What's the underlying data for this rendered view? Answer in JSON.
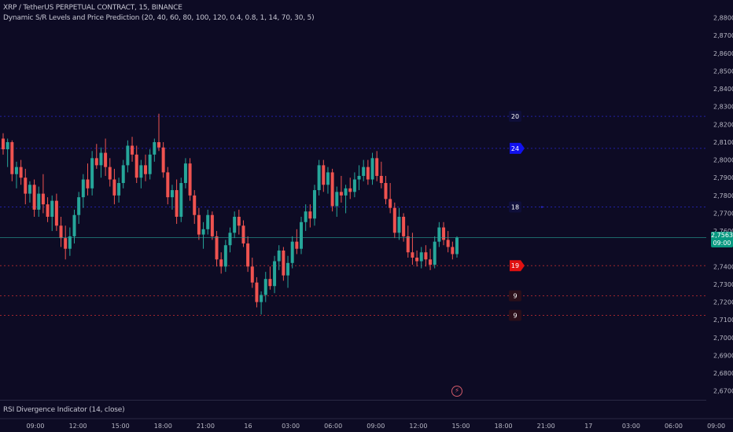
{
  "header": {
    "symbol_line": "XRP / TetherUS PERPETUAL CONTRACT, 15, BINANCE",
    "indicator_line": "Dynamic S/R Levels and Price Prediction (20, 40, 60, 80, 100, 120, 0.4, 0.8, 1, 14, 70, 30, 5)"
  },
  "indicator_pane": {
    "label": "RSI Divergence Indicator (14, close)"
  },
  "price_badge": {
    "price": "2,7563",
    "countdown": "09:00"
  },
  "colors": {
    "background": "#0d0b24",
    "up": "#26a69a",
    "down": "#ef5350",
    "resistance": "#2828d0",
    "support": "#d03030",
    "badge": "#089981"
  },
  "icons": {
    "alert": "lightning-alert-icon"
  },
  "chart_data": {
    "type": "candlestick",
    "y_axis": {
      "min": 2.665,
      "max": 2.89,
      "ticks": [
        "2,8800",
        "2,8700",
        "2,8600",
        "2,8500",
        "2,8400",
        "2,8300",
        "2,8200",
        "2,8100",
        "2,8000",
        "2,7900",
        "2,7800",
        "2,7700",
        "2,7600",
        "2,7400",
        "2,7300",
        "2,7200",
        "2,7100",
        "2,7000",
        "2,6900",
        "2,6800",
        "2,6700"
      ]
    },
    "x_axis": {
      "ticks": [
        "09:00",
        "12:00",
        "15:00",
        "18:00",
        "21:00",
        "16",
        "03:00",
        "06:00",
        "09:00",
        "12:00",
        "15:00",
        "18:00",
        "21:00",
        "17",
        "03:00",
        "06:00",
        "09:00"
      ]
    },
    "current_price": 2.7563,
    "candles": [
      [
        2.812,
        2.815,
        2.803,
        2.806
      ],
      [
        2.806,
        2.812,
        2.796,
        2.81
      ],
      [
        2.81,
        2.811,
        2.788,
        2.792
      ],
      [
        2.792,
        2.799,
        2.784,
        2.796
      ],
      [
        2.796,
        2.8,
        2.786,
        2.79
      ],
      [
        2.79,
        2.795,
        2.775,
        2.781
      ],
      [
        2.781,
        2.788,
        2.776,
        2.786
      ],
      [
        2.786,
        2.789,
        2.768,
        2.772
      ],
      [
        2.772,
        2.785,
        2.768,
        2.781
      ],
      [
        2.781,
        2.792,
        2.77,
        2.775
      ],
      [
        2.775,
        2.779,
        2.765,
        2.768
      ],
      [
        2.768,
        2.78,
        2.76,
        2.777
      ],
      [
        2.777,
        2.781,
        2.76,
        2.763
      ],
      [
        2.763,
        2.768,
        2.751,
        2.756
      ],
      [
        2.756,
        2.763,
        2.744,
        2.75
      ],
      [
        2.75,
        2.762,
        2.746,
        2.757
      ],
      [
        2.757,
        2.772,
        2.753,
        2.769
      ],
      [
        2.769,
        2.782,
        2.764,
        2.779
      ],
      [
        2.779,
        2.792,
        2.773,
        2.789
      ],
      [
        2.789,
        2.798,
        2.78,
        2.784
      ],
      [
        2.784,
        2.805,
        2.78,
        2.801
      ],
      [
        2.801,
        2.809,
        2.795,
        2.797
      ],
      [
        2.797,
        2.807,
        2.79,
        2.804
      ],
      [
        2.804,
        2.812,
        2.791,
        2.796
      ],
      [
        2.796,
        2.801,
        2.785,
        2.789
      ],
      [
        2.789,
        2.795,
        2.775,
        2.78
      ],
      [
        2.78,
        2.79,
        2.776,
        2.787
      ],
      [
        2.787,
        2.8,
        2.784,
        2.797
      ],
      [
        2.797,
        2.811,
        2.793,
        2.808
      ],
      [
        2.808,
        2.813,
        2.799,
        2.803
      ],
      [
        2.803,
        2.808,
        2.787,
        2.79
      ],
      [
        2.79,
        2.8,
        2.784,
        2.797
      ],
      [
        2.797,
        2.803,
        2.788,
        2.792
      ],
      [
        2.792,
        2.806,
        2.789,
        2.803
      ],
      [
        2.803,
        2.812,
        2.799,
        2.81
      ],
      [
        2.81,
        2.826,
        2.805,
        2.807
      ],
      [
        2.807,
        2.81,
        2.79,
        2.793
      ],
      [
        2.793,
        2.796,
        2.775,
        2.779
      ],
      [
        2.779,
        2.786,
        2.772,
        2.783
      ],
      [
        2.783,
        2.789,
        2.764,
        2.768
      ],
      [
        2.768,
        2.79,
        2.765,
        2.787
      ],
      [
        2.787,
        2.801,
        2.784,
        2.798
      ],
      [
        2.798,
        2.801,
        2.777,
        2.78
      ],
      [
        2.78,
        2.783,
        2.764,
        2.769
      ],
      [
        2.769,
        2.773,
        2.755,
        2.758
      ],
      [
        2.758,
        2.765,
        2.75,
        2.761
      ],
      [
        2.761,
        2.772,
        2.758,
        2.769
      ],
      [
        2.769,
        2.771,
        2.755,
        2.757
      ],
      [
        2.757,
        2.76,
        2.74,
        2.744
      ],
      [
        2.744,
        2.748,
        2.736,
        2.74
      ],
      [
        2.74,
        2.755,
        2.737,
        2.752
      ],
      [
        2.752,
        2.762,
        2.748,
        2.759
      ],
      [
        2.759,
        2.771,
        2.756,
        2.768
      ],
      [
        2.768,
        2.772,
        2.758,
        2.763
      ],
      [
        2.763,
        2.766,
        2.751,
        2.753
      ],
      [
        2.753,
        2.757,
        2.737,
        2.74
      ],
      [
        2.74,
        2.745,
        2.728,
        2.731
      ],
      [
        2.731,
        2.734,
        2.717,
        2.72
      ],
      [
        2.72,
        2.726,
        2.713,
        2.724
      ],
      [
        2.724,
        2.737,
        2.72,
        2.733
      ],
      [
        2.733,
        2.74,
        2.727,
        2.729
      ],
      [
        2.729,
        2.746,
        2.725,
        2.743
      ],
      [
        2.743,
        2.752,
        2.738,
        2.749
      ],
      [
        2.749,
        2.751,
        2.732,
        2.735
      ],
      [
        2.735,
        2.746,
        2.728,
        2.742
      ],
      [
        2.742,
        2.757,
        2.739,
        2.754
      ],
      [
        2.754,
        2.761,
        2.747,
        2.75
      ],
      [
        2.75,
        2.768,
        2.747,
        2.765
      ],
      [
        2.765,
        2.775,
        2.76,
        2.771
      ],
      [
        2.771,
        2.775,
        2.762,
        2.767
      ],
      [
        2.767,
        2.786,
        2.763,
        2.783
      ],
      [
        2.783,
        2.8,
        2.78,
        2.797
      ],
      [
        2.797,
        2.8,
        2.782,
        2.786
      ],
      [
        2.786,
        2.796,
        2.781,
        2.793
      ],
      [
        2.793,
        2.795,
        2.771,
        2.774
      ],
      [
        2.774,
        2.785,
        2.768,
        2.782
      ],
      [
        2.782,
        2.791,
        2.776,
        2.78
      ],
      [
        2.78,
        2.786,
        2.77,
        2.784
      ],
      [
        2.784,
        2.79,
        2.778,
        2.782
      ],
      [
        2.782,
        2.793,
        2.779,
        2.789
      ],
      [
        2.789,
        2.797,
        2.783,
        2.791
      ],
      [
        2.791,
        2.8,
        2.788,
        2.796
      ],
      [
        2.796,
        2.8,
        2.786,
        2.789
      ],
      [
        2.789,
        2.804,
        2.786,
        2.801
      ],
      [
        2.801,
        2.805,
        2.788,
        2.791
      ],
      [
        2.791,
        2.799,
        2.784,
        2.787
      ],
      [
        2.787,
        2.791,
        2.775,
        2.778
      ],
      [
        2.778,
        2.787,
        2.77,
        2.773
      ],
      [
        2.773,
        2.776,
        2.756,
        2.759
      ],
      [
        2.759,
        2.773,
        2.755,
        2.768
      ],
      [
        2.768,
        2.77,
        2.754,
        2.757
      ],
      [
        2.757,
        2.763,
        2.745,
        2.748
      ],
      [
        2.748,
        2.759,
        2.741,
        2.745
      ],
      [
        2.745,
        2.749,
        2.74,
        2.743
      ],
      [
        2.743,
        2.751,
        2.739,
        2.748
      ],
      [
        2.748,
        2.752,
        2.74,
        2.744
      ],
      [
        2.744,
        2.75,
        2.738,
        2.741
      ],
      [
        2.741,
        2.757,
        2.739,
        2.754
      ],
      [
        2.754,
        2.765,
        2.751,
        2.762
      ],
      [
        2.762,
        2.765,
        2.752,
        2.755
      ],
      [
        2.755,
        2.76,
        2.748,
        2.751
      ],
      [
        2.751,
        2.754,
        2.744,
        2.747
      ],
      [
        2.747,
        2.757,
        2.745,
        2.7563
      ]
    ],
    "levels": [
      {
        "label": "20",
        "price": 2.8245,
        "kind": "resistance"
      },
      {
        "label": "24",
        "price": 2.8065,
        "kind": "resistance"
      },
      {
        "label": "18",
        "price": 2.7735,
        "kind": "resistance"
      },
      {
        "label": "19",
        "price": 2.7405,
        "kind": "support"
      },
      {
        "label": "9",
        "price": 2.7235,
        "kind": "support"
      },
      {
        "label": "9",
        "price": 2.7125,
        "kind": "support"
      }
    ]
  }
}
